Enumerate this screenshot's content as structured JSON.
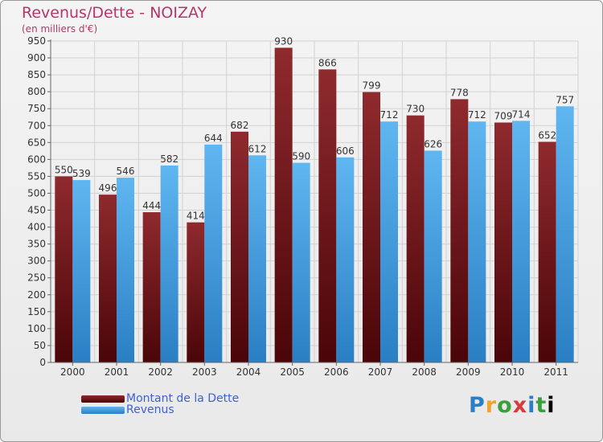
{
  "header": {
    "title": "Revenus/Dette - NOIZAY",
    "subtitle": "(en milliers d'€)"
  },
  "legend": {
    "items": [
      {
        "label": "Montant de la Dette"
      },
      {
        "label": "Revenus"
      }
    ]
  },
  "logo": {
    "letters": [
      "P",
      "r",
      "o",
      "x",
      "i",
      "t",
      "i"
    ]
  },
  "colors": {
    "debt": "#7a1e22",
    "revenue": "#3e9be0",
    "axis": "#555555",
    "grid": "#cfcfcf"
  },
  "chart_data": {
    "type": "bar",
    "title": "Revenus/Dette - NOIZAY",
    "subtitle": "(en milliers d'€)",
    "xlabel": "",
    "ylabel": "",
    "categories": [
      "2000",
      "2001",
      "2002",
      "2003",
      "2004",
      "2005",
      "2006",
      "2007",
      "2008",
      "2009",
      "2010",
      "2011"
    ],
    "series": [
      {
        "name": "Montant de la Dette",
        "values": [
          550,
          496,
          444,
          414,
          682,
          930,
          866,
          799,
          730,
          778,
          709,
          652
        ]
      },
      {
        "name": "Revenus",
        "values": [
          539,
          546,
          582,
          644,
          612,
          590,
          606,
          712,
          626,
          712,
          714,
          757
        ]
      }
    ],
    "ylim": [
      0,
      950
    ],
    "yticks": [
      0,
      50,
      100,
      150,
      200,
      250,
      300,
      350,
      400,
      450,
      500,
      550,
      600,
      650,
      700,
      750,
      800,
      850,
      900,
      950
    ],
    "grid": true,
    "legend_position": "bottom-left"
  }
}
